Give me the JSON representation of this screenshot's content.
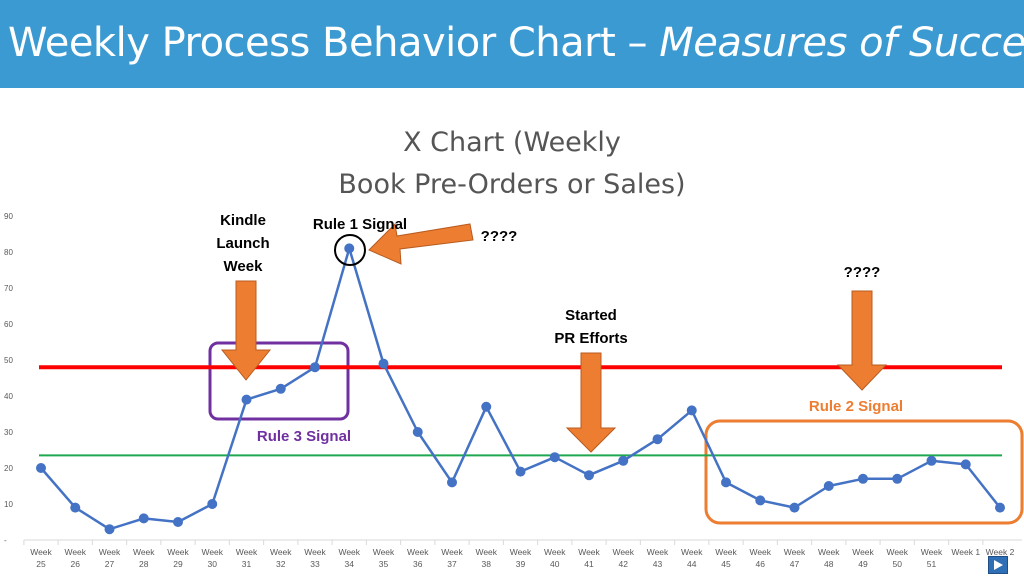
{
  "slide_title": {
    "main": "Weekly Process Behavior Chart – ",
    "italic": "Measures of Success"
  },
  "chart_title_lines": [
    "X Chart (Weekly",
    "Book Pre-Orders or Sales)"
  ],
  "colors": {
    "banner": "#3a9ad1",
    "series": "#4472c4",
    "upper_limit": "#ff0000",
    "average": "#1fa84f",
    "arrow": "#ed7d31",
    "rule3_box": "#7030a0",
    "rule2_box": "#ed7d31",
    "signal_circle": "#000000"
  },
  "annotations": {
    "kindle_launch": [
      "Kindle",
      "Launch",
      "Week"
    ],
    "rule1": "Rule 1 Signal",
    "question1": "????",
    "question2": "????",
    "pr_efforts": [
      "Started",
      "PR Efforts"
    ],
    "rule2": "Rule 2 Signal",
    "rule3": "Rule 3 Signal"
  },
  "icons": {
    "next_slide": "play-triangle-icon"
  },
  "chart_data": {
    "type": "line",
    "title": "X Chart (Weekly Book Pre-Orders or Sales)",
    "xlabel": "",
    "ylabel": "",
    "ylim": [
      0,
      90
    ],
    "y_ticks": [
      "-",
      "10",
      "20",
      "30",
      "40",
      "50",
      "60",
      "70",
      "80",
      "90"
    ],
    "categories": [
      [
        "Week",
        "25"
      ],
      [
        "Week",
        "26"
      ],
      [
        "Week",
        "27"
      ],
      [
        "Week",
        "28"
      ],
      [
        "Week",
        "29"
      ],
      [
        "Week",
        "30"
      ],
      [
        "Week",
        "31"
      ],
      [
        "Week",
        "32"
      ],
      [
        "Week",
        "33"
      ],
      [
        "Week",
        "34"
      ],
      [
        "Week",
        "35"
      ],
      [
        "Week",
        "36"
      ],
      [
        "Week",
        "37"
      ],
      [
        "Week",
        "38"
      ],
      [
        "Week",
        "39"
      ],
      [
        "Week",
        "40"
      ],
      [
        "Week",
        "41"
      ],
      [
        "Week",
        "42"
      ],
      [
        "Week",
        "43"
      ],
      [
        "Week",
        "44"
      ],
      [
        "Week",
        "45"
      ],
      [
        "Week",
        "46"
      ],
      [
        "Week",
        "47"
      ],
      [
        "Week",
        "48"
      ],
      [
        "Week",
        "49"
      ],
      [
        "Week",
        "50"
      ],
      [
        "Week",
        "51"
      ],
      [
        "Week 1",
        ""
      ],
      [
        "Week 2",
        ""
      ]
    ],
    "series": [
      {
        "values": [
          20,
          9,
          3,
          6,
          5,
          10,
          39,
          42,
          48,
          81,
          49,
          30,
          16,
          37,
          19,
          23,
          18,
          22,
          28,
          36,
          16,
          11,
          9,
          15,
          17,
          17,
          22,
          21,
          9
        ]
      }
    ],
    "upper_natural_process_limit": 48,
    "average": 23.5,
    "grid": false,
    "legend": "none"
  }
}
